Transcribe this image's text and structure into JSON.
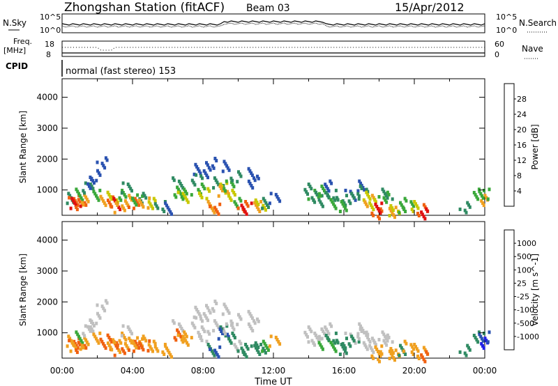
{
  "header": {
    "station": "Zhongshan Station (fitACF)",
    "beam": "Beam 03",
    "date": "15/Apr/2012"
  },
  "noise_panel": {
    "left_label": "N.Sky",
    "right_label": "N.Search",
    "left_ticks": [
      "10^5",
      "10^0"
    ],
    "right_ticks": [
      "10^5",
      "10^0"
    ]
  },
  "freq_panel": {
    "left_label_1": "Freq.",
    "left_label_2": "[MHz]",
    "right_label": "Nave",
    "left_ticks": [
      "18",
      "8"
    ],
    "right_ticks": [
      "60",
      "0"
    ]
  },
  "cpid": {
    "label": "CPID",
    "text": "normal (fast stereo) 153"
  },
  "colors": {
    "power": [
      "#1f1fe8",
      "#2a52b0",
      "#2f8a62",
      "#3aa83a",
      "#c8c800",
      "#f0a020",
      "#f06010",
      "#e01010"
    ],
    "velocity": [
      "#e01010",
      "#f06010",
      "#f0a020",
      "#c0c0c0",
      "#c0c0c0",
      "#3aa83a",
      "#2f8a62",
      "#2a52b0",
      "#1f1fe8"
    ]
  },
  "chart_data": [
    {
      "type": "heatmap",
      "name": "power",
      "xlabel": "",
      "ylabel": "Slant Range [km]",
      "xlim": [
        0,
        24
      ],
      "ylim": [
        180,
        4600
      ],
      "y_ticks": [
        "1000",
        "2000",
        "3000",
        "4000"
      ],
      "colorbar_label": "Power [dB]",
      "colorbar_ticks": [
        "4",
        "8",
        "12",
        "16",
        "20",
        "24",
        "28"
      ],
      "cells": [
        [
          0.5,
          800,
          2
        ],
        [
          0.6,
          700,
          6
        ],
        [
          0.7,
          600,
          7
        ],
        [
          0.8,
          900,
          3
        ],
        [
          1.0,
          600,
          6
        ],
        [
          1.2,
          750,
          5
        ],
        [
          1.4,
          1100,
          2
        ],
        [
          1.6,
          1250,
          1
        ],
        [
          1.8,
          1500,
          1
        ],
        [
          2.0,
          900,
          3
        ],
        [
          2.2,
          1950,
          1
        ],
        [
          2.4,
          700,
          5
        ],
        [
          2.6,
          650,
          6
        ],
        [
          2.8,
          800,
          4
        ],
        [
          3.0,
          600,
          7
        ],
        [
          3.2,
          500,
          5
        ],
        [
          3.4,
          900,
          3
        ],
        [
          3.6,
          1100,
          2
        ],
        [
          3.8,
          700,
          5
        ],
        [
          4.0,
          600,
          6
        ],
        [
          4.2,
          750,
          3
        ],
        [
          4.4,
          800,
          2
        ],
        [
          4.6,
          650,
          5
        ],
        [
          5.0,
          600,
          4
        ],
        [
          5.5,
          500,
          2
        ],
        [
          6.0,
          450,
          1
        ],
        [
          6.5,
          1300,
          2
        ],
        [
          6.6,
          1000,
          3
        ],
        [
          6.8,
          800,
          4
        ],
        [
          7.0,
          900,
          3
        ],
        [
          7.5,
          1700,
          1
        ],
        [
          7.6,
          1400,
          2
        ],
        [
          7.8,
          1100,
          3
        ],
        [
          8.0,
          950,
          4
        ],
        [
          8.2,
          1600,
          1
        ],
        [
          8.4,
          1900,
          1
        ],
        [
          8.5,
          500,
          5
        ],
        [
          8.6,
          450,
          6
        ],
        [
          8.8,
          1300,
          2
        ],
        [
          9.0,
          1100,
          4
        ],
        [
          9.1,
          1000,
          5
        ],
        [
          9.2,
          1800,
          1
        ],
        [
          9.4,
          1200,
          3
        ],
        [
          9.6,
          900,
          4
        ],
        [
          9.8,
          1500,
          2
        ],
        [
          10.0,
          600,
          3
        ],
        [
          10.2,
          500,
          6
        ],
        [
          10.4,
          450,
          7
        ],
        [
          10.6,
          1300,
          1
        ],
        [
          10.8,
          1600,
          1
        ],
        [
          11.0,
          500,
          5
        ],
        [
          11.2,
          550,
          4
        ],
        [
          11.5,
          600,
          2
        ],
        [
          12.0,
          800,
          1
        ],
        [
          14.0,
          1100,
          2
        ],
        [
          14.2,
          900,
          3
        ],
        [
          14.4,
          800,
          2
        ],
        [
          14.6,
          1000,
          3
        ],
        [
          14.8,
          700,
          2
        ],
        [
          15.0,
          1200,
          1
        ],
        [
          15.2,
          900,
          2
        ],
        [
          15.4,
          600,
          3
        ],
        [
          15.8,
          700,
          2
        ],
        [
          16.0,
          500,
          3
        ],
        [
          16.3,
          900,
          1
        ],
        [
          16.5,
          800,
          2
        ],
        [
          16.8,
          1200,
          1
        ],
        [
          17.0,
          1000,
          2
        ],
        [
          17.2,
          800,
          4
        ],
        [
          17.4,
          700,
          5
        ],
        [
          17.6,
          600,
          4
        ],
        [
          17.8,
          300,
          6
        ],
        [
          18.0,
          450,
          7
        ],
        [
          18.2,
          800,
          3
        ],
        [
          18.4,
          900,
          2
        ],
        [
          18.6,
          350,
          5
        ],
        [
          18.8,
          400,
          4
        ],
        [
          19.2,
          500,
          3
        ],
        [
          19.6,
          600,
          3
        ],
        [
          20.0,
          500,
          4
        ],
        [
          20.4,
          400,
          6
        ],
        [
          20.6,
          300,
          7
        ],
        [
          22.8,
          500,
          2
        ],
        [
          23.6,
          900,
          3
        ],
        [
          23.8,
          700,
          5
        ],
        [
          23.9,
          900,
          3
        ]
      ]
    },
    {
      "type": "heatmap",
      "name": "velocity",
      "xlabel": "Time UT",
      "ylabel": "Slant Range [km]",
      "xlim": [
        0,
        24
      ],
      "ylim": [
        180,
        4600
      ],
      "y_ticks": [
        "1000",
        "2000",
        "3000",
        "4000"
      ],
      "x_ticks": [
        "00:00",
        "04:00",
        "08:00",
        "12:00",
        "16:00",
        "20:00",
        "00:00"
      ],
      "colorbar_label": "Velocity [m s^-1]",
      "colorbar_ticks": [
        "1000",
        "500",
        "100",
        "25",
        "-25",
        "-100",
        "-500",
        "-1000"
      ],
      "cells": [
        [
          0.5,
          800,
          2
        ],
        [
          0.6,
          700,
          1
        ],
        [
          0.7,
          600,
          2
        ],
        [
          0.8,
          900,
          5
        ],
        [
          1.0,
          600,
          1
        ],
        [
          1.2,
          750,
          2
        ],
        [
          1.4,
          1100,
          3
        ],
        [
          1.6,
          1250,
          4
        ],
        [
          1.8,
          1500,
          3
        ],
        [
          2.0,
          900,
          2
        ],
        [
          2.2,
          1950,
          4
        ],
        [
          2.4,
          700,
          1
        ],
        [
          2.6,
          650,
          2
        ],
        [
          2.8,
          800,
          1
        ],
        [
          3.0,
          600,
          2
        ],
        [
          3.2,
          500,
          1
        ],
        [
          3.4,
          900,
          2
        ],
        [
          3.6,
          1100,
          3
        ],
        [
          3.8,
          700,
          2
        ],
        [
          4.0,
          600,
          1
        ],
        [
          4.2,
          750,
          2
        ],
        [
          4.4,
          800,
          2
        ],
        [
          4.6,
          650,
          1
        ],
        [
          5.0,
          600,
          2
        ],
        [
          5.5,
          500,
          2
        ],
        [
          6.0,
          450,
          2
        ],
        [
          6.5,
          1300,
          3
        ],
        [
          6.6,
          1000,
          1
        ],
        [
          6.8,
          800,
          2
        ],
        [
          7.0,
          900,
          2
        ],
        [
          7.5,
          1700,
          3
        ],
        [
          7.6,
          1400,
          3
        ],
        [
          7.8,
          1100,
          3
        ],
        [
          8.0,
          950,
          3
        ],
        [
          8.2,
          1600,
          4
        ],
        [
          8.4,
          1900,
          4
        ],
        [
          8.5,
          500,
          6
        ],
        [
          8.6,
          450,
          7
        ],
        [
          8.8,
          1300,
          3
        ],
        [
          9.0,
          1100,
          6
        ],
        [
          9.1,
          1000,
          7
        ],
        [
          9.2,
          1800,
          4
        ],
        [
          9.4,
          1200,
          3
        ],
        [
          9.6,
          900,
          6
        ],
        [
          9.8,
          1500,
          3
        ],
        [
          10.0,
          600,
          3
        ],
        [
          10.2,
          500,
          6
        ],
        [
          10.4,
          450,
          6
        ],
        [
          10.6,
          1300,
          4
        ],
        [
          10.8,
          1600,
          4
        ],
        [
          11.0,
          500,
          6
        ],
        [
          11.2,
          550,
          6
        ],
        [
          11.5,
          600,
          5
        ],
        [
          12.0,
          800,
          2
        ],
        [
          14.0,
          1100,
          3
        ],
        [
          14.2,
          900,
          3
        ],
        [
          14.4,
          800,
          4
        ],
        [
          14.6,
          1000,
          3
        ],
        [
          14.8,
          700,
          5
        ],
        [
          15.0,
          1200,
          3
        ],
        [
          15.2,
          900,
          6
        ],
        [
          15.4,
          600,
          5
        ],
        [
          15.8,
          700,
          6
        ],
        [
          16.0,
          500,
          6
        ],
        [
          16.3,
          900,
          3
        ],
        [
          16.5,
          800,
          6
        ],
        [
          16.8,
          1200,
          4
        ],
        [
          17.0,
          1000,
          4
        ],
        [
          17.2,
          800,
          4
        ],
        [
          17.4,
          700,
          4
        ],
        [
          17.6,
          600,
          3
        ],
        [
          17.8,
          300,
          2
        ],
        [
          18.0,
          450,
          2
        ],
        [
          18.2,
          800,
          3
        ],
        [
          18.4,
          900,
          3
        ],
        [
          18.6,
          350,
          2
        ],
        [
          18.8,
          400,
          2
        ],
        [
          19.2,
          500,
          6
        ],
        [
          19.6,
          600,
          2
        ],
        [
          20.0,
          500,
          2
        ],
        [
          20.4,
          400,
          2
        ],
        [
          20.6,
          300,
          1
        ],
        [
          22.8,
          500,
          6
        ],
        [
          23.6,
          900,
          6
        ],
        [
          23.8,
          700,
          8
        ],
        [
          23.9,
          900,
          7
        ]
      ]
    }
  ]
}
